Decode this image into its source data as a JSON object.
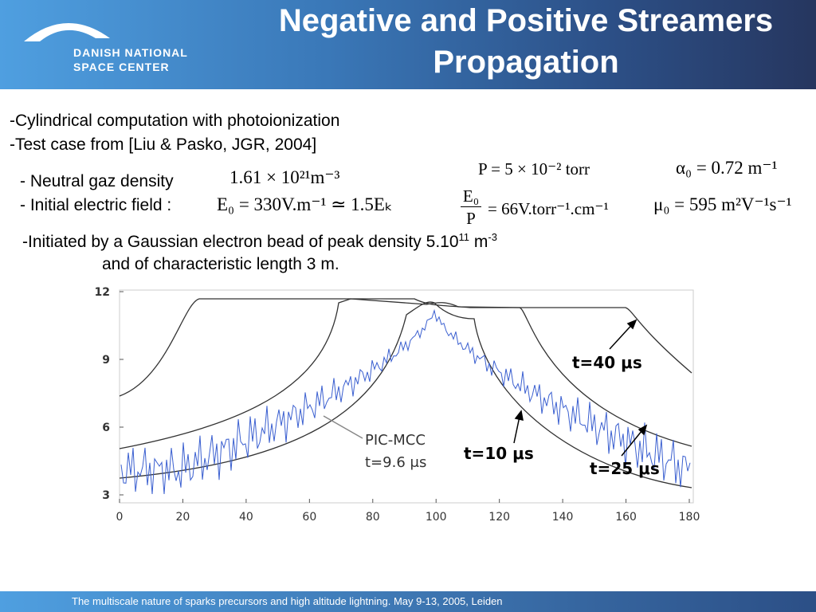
{
  "header": {
    "logo_line1": "DANISH NATIONAL",
    "logo_line2": "SPACE CENTER",
    "title_line1": "Negative and Positive Streamers",
    "title_line2": "Propagation"
  },
  "bullets": [
    "-Cylindrical computation with photoionization",
    "-Test case from [Liu & Pasko, JGR, 2004]"
  ],
  "params": {
    "density_label": "- Neutral gaz density",
    "density_value": "1.61 × 10²¹m⁻³",
    "pressure": "P = 5 × 10⁻² torr",
    "alpha": "α₀ = 0.72 m⁻¹",
    "field_label": "- Initial electric field :",
    "field_value": "E₀ = 330V.m⁻¹ ≃ 1.5Eₖ",
    "ratio_num": "E₀",
    "ratio_den": "P",
    "ratio_value": "= 66V.torr⁻¹.cm⁻¹",
    "mu": "μ₀ = 595 m²V⁻¹s⁻¹"
  },
  "initiation": {
    "text": "-Initiated by a Gaussian electron bead of peak density 5.10",
    "exp1": "11",
    "unit": " m",
    "exp2": "-3",
    "line2": "and of characteristic length 3 m."
  },
  "figure": {
    "xlim": [
      0,
      180
    ],
    "ylim": [
      3,
      12
    ],
    "xticks": [
      0,
      20,
      40,
      60,
      80,
      100,
      120,
      140,
      160,
      180
    ],
    "yticks": [
      3,
      6,
      9,
      12
    ],
    "annotations": {
      "t40": "t=40 μs",
      "t25": "t=25 μs",
      "t10": "t=10 μs",
      "pic": "PIC-MCC",
      "pic_t": "t=9.6 μs"
    }
  },
  "footer": "The multiscale nature of sparks precursors and high altitude lightning. May 9-13, 2005, Leiden"
}
